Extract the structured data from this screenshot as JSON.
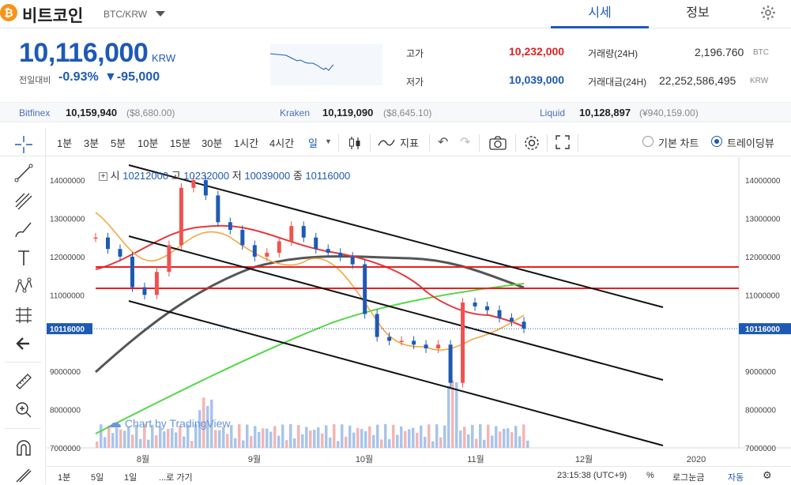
{
  "header": {
    "coin_logo": "₿",
    "coin_name": "비트코인",
    "pair": "BTC/KRW",
    "tabs": [
      "시세",
      "정보"
    ],
    "active_tab": "시세"
  },
  "price": {
    "current": "10,116,000",
    "unit": "KRW",
    "change_label": "전일대비",
    "change_pct": "-0.93%",
    "change_amt": "▼-95,000"
  },
  "stats": {
    "high_label": "고가",
    "high": "10,232,000",
    "low_label": "저가",
    "low": "10,039,000",
    "volume_label": "거래량(24H)",
    "volume": "2,196.760",
    "volume_unit": "BTC",
    "amount_label": "거래대금(24H)",
    "amount": "22,252,586,495",
    "amount_unit": "KRW"
  },
  "exchanges": [
    {
      "name": "Bitfinex",
      "price": "10,159,940",
      "usd": "($8,680.00)"
    },
    {
      "name": "Kraken",
      "price": "10,119,090",
      "usd": "($8,645.10)"
    },
    {
      "name": "Liquid",
      "price": "10,128,897",
      "usd": "(¥940,159.00)"
    }
  ],
  "toolbar": {
    "intervals": [
      "1분",
      "3분",
      "5분",
      "10분",
      "15분",
      "30분",
      "1시간",
      "4시간",
      "일"
    ],
    "indicator_label": "지표",
    "basic_chart_label": "기본 차트",
    "tradingview_label": "트레이딩뷰",
    "chart_mode": "트레이딩뷰"
  },
  "ohlc": {
    "open_label": "시",
    "open": "10212000",
    "high_label": "고",
    "high": "10232000",
    "low_label": "저",
    "low": "10039000",
    "vol_label": "종",
    "close": "10116000"
  },
  "watermark": "Chart by TradingView",
  "chart_data": {
    "type": "line",
    "price_axis_ticks": [
      "14000000",
      "13000000",
      "12000000",
      "11000000",
      "9000000",
      "8000000",
      "7000000"
    ],
    "current_price_tag": "10116000",
    "time_labels": [
      "8월",
      "9월",
      "10월",
      "11월",
      "12월",
      "2020"
    ],
    "series": [
      {
        "values": [
          12500000,
          12200000,
          12000000,
          11200000,
          11000000,
          11600000,
          12300000,
          13800000,
          14000000,
          13600000,
          12900000,
          12700000,
          12300000,
          12000000,
          12100000,
          12400000,
          12800000,
          12500000,
          12200000,
          12100000,
          12000000,
          11800000,
          10500000,
          9900000,
          9800000,
          9800000,
          9700000,
          9600000,
          9700000,
          8700000,
          10800000,
          10700000,
          10600000,
          10400000,
          10300000,
          10116000
        ]
      }
    ],
    "ylim": [
      7000000,
      14600000
    ],
    "colors": {
      "up": "#ef5350",
      "down": "#1e5ab4",
      "ma_red": "#e8373b",
      "ma_orange": "#f5a742",
      "ma_green": "#56d64a",
      "ma_gray": "#555555",
      "hline": "#e82020"
    }
  },
  "bottom": {
    "ranges": [
      "1분",
      "5일",
      "1일"
    ],
    "goto": "...로 가기",
    "time": "23:15:38 (UTC+9)",
    "percent": "%",
    "log": "로그눈금",
    "auto": "자동"
  }
}
